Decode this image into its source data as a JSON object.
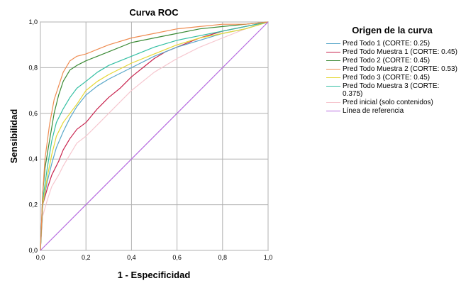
{
  "chart_data": {
    "type": "line",
    "title": "Curva ROC",
    "xlabel": "1 - Especificidad",
    "ylabel": "Sensibilidad",
    "xlim": [
      0,
      1
    ],
    "ylim": [
      0,
      1
    ],
    "xticks": [
      "0,0",
      "0,2",
      "0,4",
      "0,6",
      "0,8",
      "1,0"
    ],
    "yticks": [
      "0,0",
      "0,2",
      "0,4",
      "0,6",
      "0,8",
      "1,0"
    ],
    "grid": true,
    "legend_title": "Origen de la curva",
    "legend_position": "right",
    "series": [
      {
        "name": "Pred Todo 1 (CORTE: 0.25)",
        "color": "#5aa7c9",
        "x": [
          0,
          0.01,
          0.03,
          0.05,
          0.07,
          0.1,
          0.13,
          0.16,
          0.2,
          0.25,
          0.3,
          0.4,
          0.5,
          0.6,
          0.7,
          0.8,
          0.9,
          1.0
        ],
        "y": [
          0,
          0.2,
          0.3,
          0.38,
          0.45,
          0.52,
          0.58,
          0.63,
          0.68,
          0.72,
          0.75,
          0.8,
          0.85,
          0.89,
          0.92,
          0.95,
          0.97,
          1.0
        ]
      },
      {
        "name": "Pred Todo Muestra 1 (CORTE: 0.45)",
        "color": "#c8234e",
        "x": [
          0,
          0.01,
          0.03,
          0.05,
          0.08,
          0.1,
          0.13,
          0.16,
          0.2,
          0.25,
          0.3,
          0.35,
          0.4,
          0.45,
          0.5,
          0.55,
          0.6,
          0.7,
          0.8,
          0.9,
          1.0
        ],
        "y": [
          0,
          0.2,
          0.27,
          0.33,
          0.39,
          0.44,
          0.49,
          0.53,
          0.56,
          0.62,
          0.67,
          0.71,
          0.76,
          0.8,
          0.84,
          0.87,
          0.89,
          0.93,
          0.96,
          0.98,
          1.0
        ]
      },
      {
        "name": "Pred Todo 2 (CORTE: 0.45)",
        "color": "#3b8a35",
        "x": [
          0,
          0.01,
          0.02,
          0.04,
          0.06,
          0.08,
          0.1,
          0.13,
          0.16,
          0.2,
          0.25,
          0.3,
          0.4,
          0.5,
          0.6,
          0.7,
          0.8,
          0.9,
          1.0
        ],
        "y": [
          0,
          0.25,
          0.36,
          0.48,
          0.6,
          0.68,
          0.74,
          0.79,
          0.81,
          0.83,
          0.85,
          0.87,
          0.91,
          0.93,
          0.95,
          0.97,
          0.98,
          0.99,
          1.0
        ]
      },
      {
        "name": "Pred Todo Muestra 2 (CORTE: 0.53)",
        "color": "#ef8c52",
        "x": [
          0,
          0.01,
          0.02,
          0.04,
          0.06,
          0.08,
          0.1,
          0.13,
          0.16,
          0.2,
          0.25,
          0.3,
          0.4,
          0.5,
          0.6,
          0.7,
          0.8,
          0.9,
          1.0
        ],
        "y": [
          0,
          0.25,
          0.4,
          0.55,
          0.66,
          0.72,
          0.78,
          0.83,
          0.85,
          0.86,
          0.88,
          0.9,
          0.93,
          0.95,
          0.97,
          0.98,
          0.99,
          0.99,
          1.0
        ]
      },
      {
        "name": "Pred Todo 3 (CORTE: 0.45)",
        "color": "#e5d734",
        "x": [
          0,
          0.01,
          0.03,
          0.05,
          0.07,
          0.1,
          0.13,
          0.16,
          0.2,
          0.25,
          0.3,
          0.4,
          0.5,
          0.6,
          0.7,
          0.8,
          0.9,
          1.0
        ],
        "y": [
          0,
          0.2,
          0.32,
          0.42,
          0.5,
          0.56,
          0.6,
          0.64,
          0.7,
          0.74,
          0.77,
          0.82,
          0.86,
          0.9,
          0.93,
          0.95,
          0.97,
          1.0
        ]
      },
      {
        "name": "Pred Todo Muestra 3 (CORTE: 0.375)",
        "color": "#33bfa3",
        "x": [
          0,
          0.01,
          0.03,
          0.05,
          0.07,
          0.1,
          0.13,
          0.16,
          0.2,
          0.25,
          0.3,
          0.4,
          0.5,
          0.6,
          0.7,
          0.8,
          0.9,
          1.0
        ],
        "y": [
          0,
          0.22,
          0.36,
          0.48,
          0.56,
          0.62,
          0.67,
          0.71,
          0.74,
          0.78,
          0.81,
          0.85,
          0.89,
          0.92,
          0.94,
          0.96,
          0.98,
          1.0
        ]
      },
      {
        "name": "Pred inicial (solo contenidos)",
        "color": "#f6c7cf",
        "x": [
          0,
          0.01,
          0.03,
          0.05,
          0.08,
          0.1,
          0.13,
          0.16,
          0.2,
          0.25,
          0.3,
          0.35,
          0.4,
          0.5,
          0.6,
          0.7,
          0.8,
          0.9,
          1.0
        ],
        "y": [
          0,
          0.15,
          0.22,
          0.28,
          0.33,
          0.37,
          0.42,
          0.47,
          0.5,
          0.55,
          0.6,
          0.65,
          0.7,
          0.78,
          0.84,
          0.89,
          0.93,
          0.97,
          1.0
        ]
      },
      {
        "name": "Línea de referencia",
        "color": "#b66be0",
        "x": [
          0,
          1.0
        ],
        "y": [
          0,
          1.0
        ]
      }
    ]
  }
}
